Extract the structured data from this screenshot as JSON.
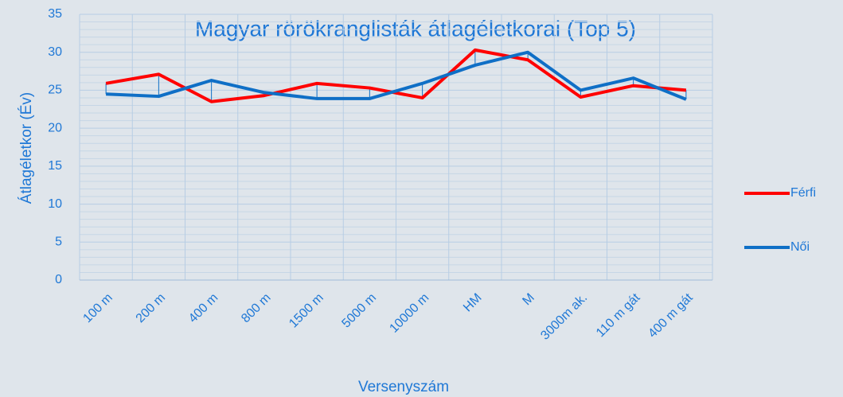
{
  "chart_data": {
    "type": "line",
    "title": "Magyar rörökranglisták átlagéletkorai (Top 5)",
    "x_label": "Versenyszám",
    "y_label": "Átlagéletkor (Év)",
    "categories": [
      "100 m",
      "200 m",
      "400 m",
      "800 m",
      "1500 m",
      "5000 m",
      "10000 m",
      "HM",
      "M",
      "3000m ak.",
      "110 m gát",
      "400 m gát"
    ],
    "series": [
      {
        "name": "Férfi",
        "color": "#ff0000",
        "values": [
          25.9,
          27.1,
          23.5,
          24.3,
          25.9,
          25.3,
          24.0,
          30.3,
          29.0,
          24.1,
          25.6,
          25.0
        ]
      },
      {
        "name": "Női",
        "color": "#0f6fc6",
        "values": [
          24.5,
          24.2,
          26.3,
          24.7,
          23.9,
          23.9,
          25.9,
          28.3,
          30.0,
          25.0,
          26.6,
          23.8
        ]
      }
    ],
    "ylim": [
      0,
      35
    ],
    "yticks": [
      0,
      5,
      10,
      15,
      20,
      25,
      30,
      35
    ],
    "grid": true,
    "minor_grid": true,
    "drop_lines": true,
    "legend": "right"
  }
}
